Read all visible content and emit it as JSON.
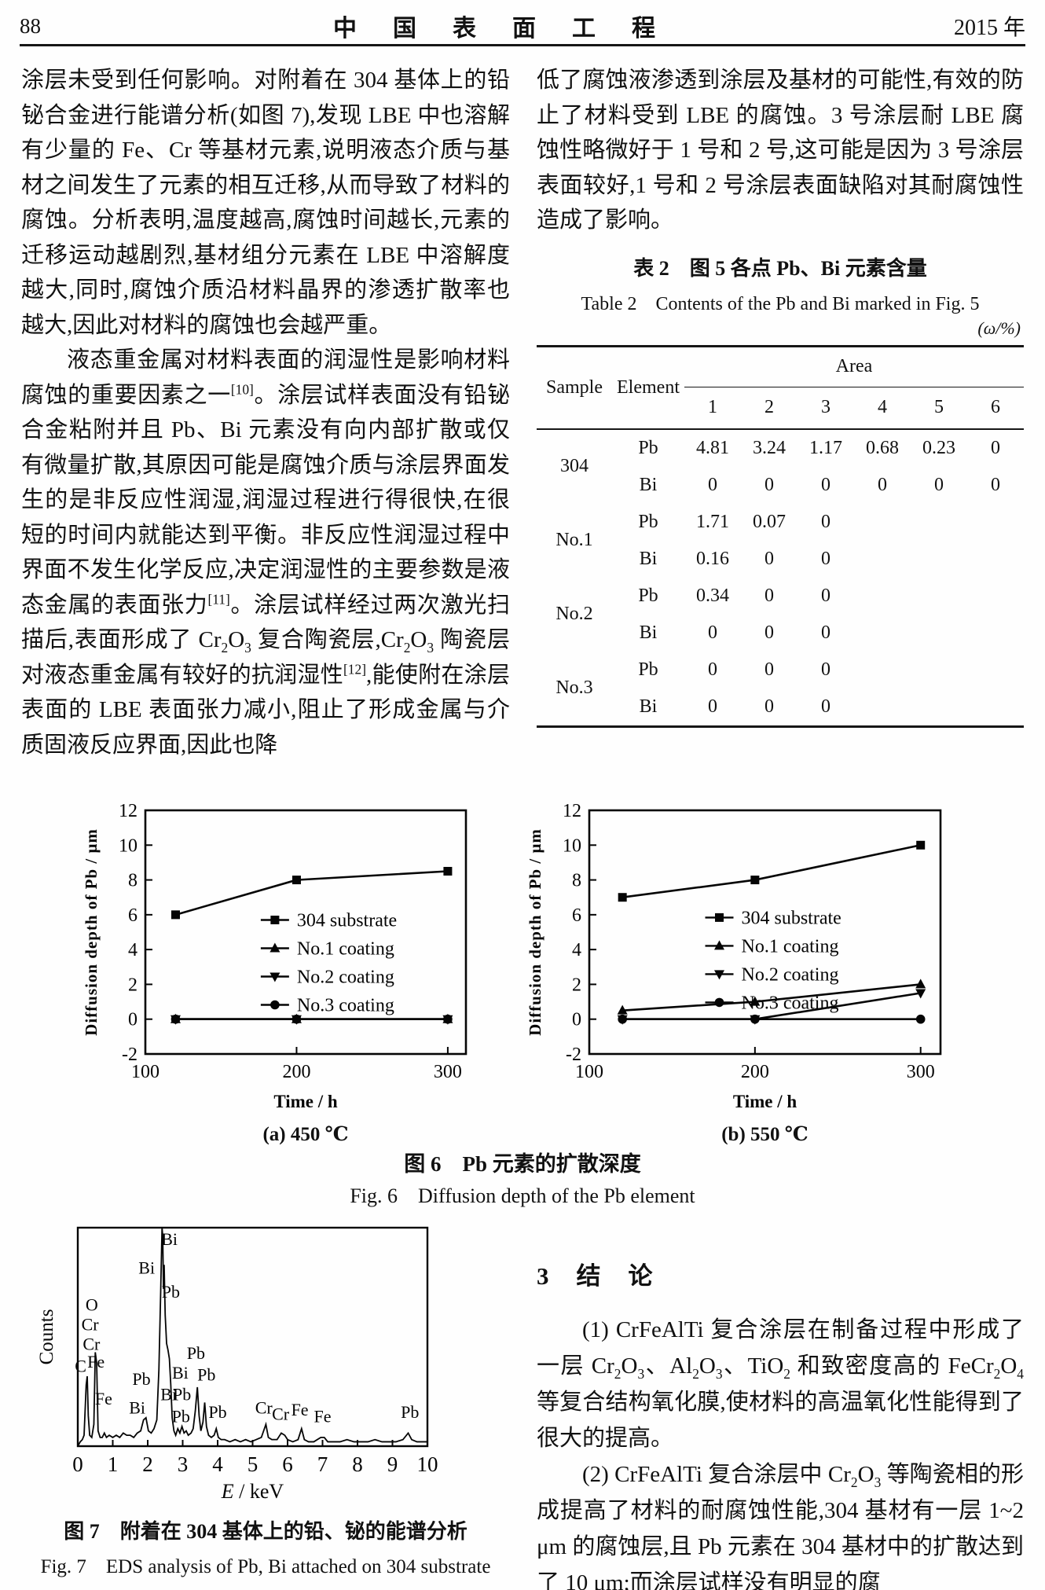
{
  "header": {
    "page_number": "88",
    "journal_title": "中　国　表　面　工　程",
    "year": "2015 年"
  },
  "left_column": {
    "paragraph1": "涂层未受到任何影响。对附着在 304 基体上的铅铋合金进行能谱分析(如图 7),发现 LBE 中也溶解有少量的 Fe、Cr 等基材元素,说明液态介质与基材之间发生了元素的相互迁移,从而导致了材料的腐蚀。分析表明,温度越高,腐蚀时间越长,元素的迁移运动越剧烈,基材组分元素在 LBE 中溶解度越大,同时,腐蚀介质沿材料晶界的渗透扩散率也越大,因此对材料的腐蚀也会越严重。",
    "paragraph2": [
      {
        "text": "液态重金属对材料表面的润湿性是影响材料腐蚀的重要因素之一",
        "style": "normal"
      },
      {
        "text": "[10]",
        "style": "sup"
      },
      {
        "text": "。涂层试样表面没有铅铋合金粘附并且 Pb、Bi 元素没有向内部扩散或仅有微量扩散,其原因可能是腐蚀介质与涂层界面发生的是非反应性润湿,润湿过程进行得很快,在很短的时间内就能达到平衡。非反应性润湿过程中界面不发生化学反应,决定润湿性的主要参数是液态金属的表面张力",
        "style": "normal"
      },
      {
        "text": "[11]",
        "style": "sup"
      },
      {
        "text": "。涂层试样经过两次激光扫描后,表面形成了 Cr",
        "style": "normal"
      },
      {
        "text": "2",
        "style": "sub"
      },
      {
        "text": "O",
        "style": "normal"
      },
      {
        "text": "3",
        "style": "sub"
      },
      {
        "text": " 复合陶瓷层,Cr",
        "style": "normal"
      },
      {
        "text": "2",
        "style": "sub"
      },
      {
        "text": "O",
        "style": "normal"
      },
      {
        "text": "3",
        "style": "sub"
      },
      {
        "text": " 陶瓷层对液态重金属有较好的抗润湿性",
        "style": "normal"
      },
      {
        "text": "[12]",
        "style": "sup"
      },
      {
        "text": ",能使附在涂层表面的 LBE 表面张力减小,阻止了形成金属与介质固液反应界面,因此也降",
        "style": "normal"
      }
    ]
  },
  "right_column": {
    "paragraph1": "低了腐蚀液渗透到涂层及基材的可能性,有效的防止了材料受到 LBE 的腐蚀。3 号涂层耐 LBE 腐蚀性略微好于 1 号和 2 号,这可能是因为 3 号涂层表面较好,1 号和 2 号涂层表面缺陷对其耐腐蚀性造成了影响。"
  },
  "table2": {
    "title_zh": "表 2　图 5 各点 Pb、Bi 元素含量",
    "title_en": "Table 2　Contents of the Pb and Bi marked in Fig. 5",
    "unit": "(ω/%)",
    "headers": {
      "sample": "Sample",
      "element": "Element",
      "area": "Area"
    },
    "area_cols": [
      "1",
      "2",
      "3",
      "4",
      "5",
      "6"
    ],
    "groups": [
      {
        "sample": "304",
        "rows": [
          {
            "element": "Pb",
            "values": [
              "4.81",
              "3.24",
              "1.17",
              "0.68",
              "0.23",
              "0"
            ]
          },
          {
            "element": "Bi",
            "values": [
              "0",
              "0",
              "0",
              "0",
              "0",
              "0"
            ]
          }
        ]
      },
      {
        "sample": "No.1",
        "rows": [
          {
            "element": "Pb",
            "values": [
              "1.71",
              "0.07",
              "0",
              "",
              "",
              ""
            ]
          },
          {
            "element": "Bi",
            "values": [
              "0.16",
              "0",
              "0",
              "",
              "",
              ""
            ]
          }
        ]
      },
      {
        "sample": "No.2",
        "rows": [
          {
            "element": "Pb",
            "values": [
              "0.34",
              "0",
              "0",
              "",
              "",
              ""
            ]
          },
          {
            "element": "Bi",
            "values": [
              "0",
              "0",
              "0",
              "",
              "",
              ""
            ]
          }
        ]
      },
      {
        "sample": "No.3",
        "rows": [
          {
            "element": "Pb",
            "values": [
              "0",
              "0",
              "0",
              "",
              "",
              ""
            ]
          },
          {
            "element": "Bi",
            "values": [
              "0",
              "0",
              "0",
              "",
              "",
              ""
            ]
          }
        ]
      }
    ]
  },
  "figure6": {
    "caption_zh": "图 6　Pb 元素的扩散深度",
    "caption_en": "Fig. 6　Diffusion depth of the Pb element"
  },
  "figure7": {
    "caption_zh": "图 7　附着在 304 基体上的铅、铋的能谱分析",
    "caption_en": "Fig. 7　EDS analysis of Pb, Bi attached on 304 substrate"
  },
  "conclusion": {
    "section_number": "3",
    "section_title": "结　论",
    "paragraph1": [
      {
        "text": "(1) CrFeAlTi 复合涂层在制备过程中形成了一层 Cr",
        "style": "normal"
      },
      {
        "text": "2",
        "style": "sub"
      },
      {
        "text": "O",
        "style": "normal"
      },
      {
        "text": "3",
        "style": "sub"
      },
      {
        "text": "、Al",
        "style": "normal"
      },
      {
        "text": "2",
        "style": "sub"
      },
      {
        "text": "O",
        "style": "normal"
      },
      {
        "text": "3",
        "style": "sub"
      },
      {
        "text": "、TiO",
        "style": "normal"
      },
      {
        "text": "2",
        "style": "sub"
      },
      {
        "text": " 和致密度高的 FeCr",
        "style": "normal"
      },
      {
        "text": "2",
        "style": "sub"
      },
      {
        "text": "O",
        "style": "normal"
      },
      {
        "text": "4",
        "style": "sub"
      },
      {
        "text": " 等复合结构氧化膜,使材料的高温氧化性能得到了很大的提高。",
        "style": "normal"
      }
    ],
    "paragraph2": [
      {
        "text": "(2) CrFeAlTi 复合涂层中 Cr",
        "style": "normal"
      },
      {
        "text": "2",
        "style": "sub"
      },
      {
        "text": "O",
        "style": "normal"
      },
      {
        "text": "3",
        "style": "sub"
      },
      {
        "text": " 等陶瓷相的形成提高了材料的耐腐蚀性能,304 基材有一层 1~2 μm 的腐蚀层,且 Pb 元素在 304 基材中的扩散达到了 10 μm;而涂层试样没有明显的腐",
        "style": "normal"
      }
    ]
  },
  "chart_data": [
    {
      "id": "fig6a",
      "type": "line",
      "subtitle": "(a) 450 ℃",
      "xlabel": "Time / h",
      "ylabel": "Diffusion depth of Pb / μm",
      "xlim": [
        100,
        312
      ],
      "ylim": [
        -2,
        12
      ],
      "xticks": [
        100,
        200,
        300
      ],
      "yticks": [
        -2,
        0,
        2,
        4,
        6,
        8,
        10,
        12
      ],
      "x": [
        120,
        200,
        300
      ],
      "series": [
        {
          "name": "304 substrate",
          "marker": "square",
          "values": [
            6,
            8,
            8.5
          ]
        },
        {
          "name": "No.1 coating",
          "marker": "triangle-up",
          "values": [
            0,
            0,
            0
          ]
        },
        {
          "name": "No.2 coating",
          "marker": "triangle-down",
          "values": [
            0,
            0,
            0
          ]
        },
        {
          "name": "No.3 coating",
          "marker": "circle",
          "values": [
            0,
            0,
            0
          ]
        }
      ],
      "legend": {
        "fx": 0.36,
        "fy": 0.45
      },
      "grid": false,
      "legend_position": "inside-center-right"
    },
    {
      "id": "fig6b",
      "type": "line",
      "subtitle": "(b) 550 ℃",
      "xlabel": "Time / h",
      "ylabel": "Diffusion depth of Pb / μm",
      "xlim": [
        100,
        312
      ],
      "ylim": [
        -2,
        12
      ],
      "xticks": [
        100,
        200,
        300
      ],
      "yticks": [
        -2,
        0,
        2,
        4,
        6,
        8,
        10,
        12
      ],
      "x": [
        120,
        200,
        300
      ],
      "series": [
        {
          "name": "304 substrate",
          "marker": "square",
          "values": [
            7,
            8,
            10
          ]
        },
        {
          "name": "No.1 coating",
          "marker": "triangle-up",
          "values": [
            0.5,
            1,
            2
          ]
        },
        {
          "name": "No.2 coating",
          "marker": "triangle-down",
          "values": [
            0,
            0,
            1.5
          ]
        },
        {
          "name": "No.3 coating",
          "marker": "circle",
          "values": [
            0,
            0,
            0
          ]
        }
      ],
      "legend": {
        "fx": 0.33,
        "fy": 0.44
      },
      "grid": false,
      "legend_position": "inside-center-right"
    },
    {
      "id": "fig7",
      "type": "line",
      "ylabel": "Counts",
      "xlabel_italic": "E",
      "xlabel_rest": " / keV",
      "xlim": [
        0,
        10
      ],
      "xticks": [
        0,
        1,
        2,
        3,
        4,
        5,
        6,
        7,
        8,
        9,
        10
      ],
      "points": [
        [
          0,
          0
        ],
        [
          0.07,
          2
        ],
        [
          0.13,
          3
        ],
        [
          0.18,
          5
        ],
        [
          0.24,
          28
        ],
        [
          0.27,
          32
        ],
        [
          0.3,
          14
        ],
        [
          0.34,
          5
        ],
        [
          0.4,
          4
        ],
        [
          0.46,
          10
        ],
        [
          0.5,
          43
        ],
        [
          0.54,
          38
        ],
        [
          0.58,
          7
        ],
        [
          0.64,
          4
        ],
        [
          0.7,
          4
        ],
        [
          0.76,
          6
        ],
        [
          0.82,
          4
        ],
        [
          0.9,
          5
        ],
        [
          1.0,
          4
        ],
        [
          1.1,
          5
        ],
        [
          1.2,
          4
        ],
        [
          1.3,
          6
        ],
        [
          1.4,
          5
        ],
        [
          1.5,
          5
        ],
        [
          1.6,
          4
        ],
        [
          1.7,
          6
        ],
        [
          1.8,
          7
        ],
        [
          1.88,
          12
        ],
        [
          1.95,
          13
        ],
        [
          2.02,
          7
        ],
        [
          2.1,
          6
        ],
        [
          2.18,
          8
        ],
        [
          2.26,
          12
        ],
        [
          2.32,
          35
        ],
        [
          2.37,
          70
        ],
        [
          2.41,
          100
        ],
        [
          2.43,
          96
        ],
        [
          2.45,
          72
        ],
        [
          2.47,
          83
        ],
        [
          2.5,
          60
        ],
        [
          2.54,
          47
        ],
        [
          2.58,
          44
        ],
        [
          2.62,
          40
        ],
        [
          2.66,
          28
        ],
        [
          2.7,
          13
        ],
        [
          2.75,
          7
        ],
        [
          2.8,
          5
        ],
        [
          2.86,
          8
        ],
        [
          2.92,
          6
        ],
        [
          2.98,
          9
        ],
        [
          3.04,
          6
        ],
        [
          3.1,
          7
        ],
        [
          3.16,
          5
        ],
        [
          3.24,
          6
        ],
        [
          3.3,
          8
        ],
        [
          3.36,
          16
        ],
        [
          3.42,
          27
        ],
        [
          3.47,
          14
        ],
        [
          3.52,
          7
        ],
        [
          3.58,
          11
        ],
        [
          3.63,
          20
        ],
        [
          3.68,
          9
        ],
        [
          3.74,
          5
        ],
        [
          3.82,
          4
        ],
        [
          3.9,
          5
        ],
        [
          3.96,
          8
        ],
        [
          4.02,
          4
        ],
        [
          4.1,
          3
        ],
        [
          4.2,
          3
        ],
        [
          4.35,
          2
        ],
        [
          4.5,
          3
        ],
        [
          4.65,
          2
        ],
        [
          4.8,
          3
        ],
        [
          4.95,
          2
        ],
        [
          5.1,
          3
        ],
        [
          5.25,
          4
        ],
        [
          5.38,
          10
        ],
        [
          5.45,
          4
        ],
        [
          5.55,
          3
        ],
        [
          5.7,
          3
        ],
        [
          5.82,
          6
        ],
        [
          5.92,
          5
        ],
        [
          6.0,
          3
        ],
        [
          6.15,
          2
        ],
        [
          6.3,
          3
        ],
        [
          6.4,
          8
        ],
        [
          6.48,
          3
        ],
        [
          6.6,
          2
        ],
        [
          6.75,
          2
        ],
        [
          6.95,
          4
        ],
        [
          7.05,
          4
        ],
        [
          7.15,
          2
        ],
        [
          7.3,
          2
        ],
        [
          7.5,
          2
        ],
        [
          7.7,
          3
        ],
        [
          7.9,
          2
        ],
        [
          8.1,
          2
        ],
        [
          8.3,
          2
        ],
        [
          8.5,
          3
        ],
        [
          8.7,
          2
        ],
        [
          8.9,
          2
        ],
        [
          9.1,
          2
        ],
        [
          9.3,
          3
        ],
        [
          9.45,
          6
        ],
        [
          9.55,
          3
        ],
        [
          9.7,
          2
        ],
        [
          9.85,
          2
        ],
        [
          10,
          2
        ]
      ],
      "peak_labels": [
        {
          "text": "C",
          "x": 0.08,
          "y": 34
        },
        {
          "text": "O",
          "x": 0.4,
          "y": 62
        },
        {
          "text": "Cr",
          "x": 0.35,
          "y": 53
        },
        {
          "text": "Cr",
          "x": 0.39,
          "y": 44
        },
        {
          "text": "Fe",
          "x": 0.52,
          "y": 36
        },
        {
          "text": "Fe",
          "x": 0.74,
          "y": 19
        },
        {
          "text": "Bi",
          "x": 1.7,
          "y": 15
        },
        {
          "text": "Pb",
          "x": 1.82,
          "y": 28
        },
        {
          "text": "Bi",
          "x": 1.97,
          "y": 79
        },
        {
          "text": "Bi",
          "x": 2.62,
          "y": 92
        },
        {
          "text": "Pb",
          "x": 2.66,
          "y": 68
        },
        {
          "text": "Bi",
          "x": 2.93,
          "y": 31
        },
        {
          "text": "Bi",
          "x": 2.6,
          "y": 21
        },
        {
          "text": "Pb",
          "x": 2.98,
          "y": 21
        },
        {
          "text": "Pb",
          "x": 2.95,
          "y": 11
        },
        {
          "text": "Pb",
          "x": 3.38,
          "y": 40
        },
        {
          "text": "Pb",
          "x": 3.68,
          "y": 30
        },
        {
          "text": "Pb",
          "x": 4.0,
          "y": 13
        },
        {
          "text": "Cr",
          "x": 5.32,
          "y": 15
        },
        {
          "text": "Cr",
          "x": 5.8,
          "y": 12
        },
        {
          "text": "Fe",
          "x": 6.35,
          "y": 14
        },
        {
          "text": "Fe",
          "x": 7.0,
          "y": 11
        },
        {
          "text": "Pb",
          "x": 9.5,
          "y": 13
        }
      ],
      "grid": false
    }
  ]
}
